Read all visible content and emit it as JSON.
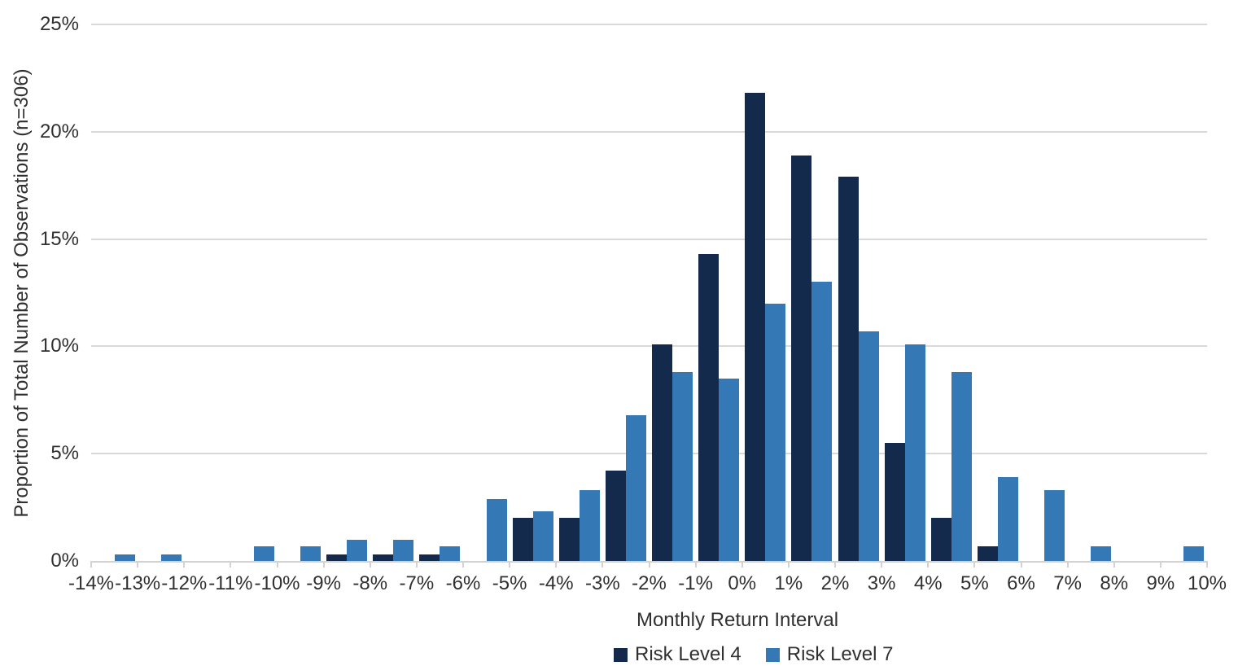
{
  "chart_data": {
    "type": "bar",
    "subtype": "clustered-histogram",
    "title": "",
    "xlabel": "Monthly Return Interval",
    "ylabel": "Proportion of Total Number of Observations (n=306)",
    "x_tick_labels": [
      "-14%",
      "-13%",
      "-12%",
      "-11%",
      "-10%",
      "-9%",
      "-8%",
      "-7%",
      "-6%",
      "-5%",
      "-4%",
      "-3%",
      "-2%",
      "-1%",
      "0%",
      "1%",
      "2%",
      "3%",
      "4%",
      "5%",
      "6%",
      "7%",
      "8%",
      "9%",
      "10%"
    ],
    "bin_intervals_pct": [
      [
        -14,
        -13
      ],
      [
        -13,
        -12
      ],
      [
        -12,
        -11
      ],
      [
        -11,
        -10
      ],
      [
        -10,
        -9
      ],
      [
        -9,
        -8
      ],
      [
        -8,
        -7
      ],
      [
        -7,
        -6
      ],
      [
        -6,
        -5
      ],
      [
        -5,
        -4
      ],
      [
        -4,
        -3
      ],
      [
        -3,
        -2
      ],
      [
        -2,
        -1
      ],
      [
        -1,
        0
      ],
      [
        0,
        1
      ],
      [
        1,
        2
      ],
      [
        2,
        3
      ],
      [
        3,
        4
      ],
      [
        4,
        5
      ],
      [
        5,
        6
      ],
      [
        6,
        7
      ],
      [
        7,
        8
      ],
      [
        8,
        9
      ],
      [
        9,
        10
      ]
    ],
    "series": [
      {
        "name": "Risk Level 4",
        "color": "#132a4c",
        "values": [
          0,
          0,
          0,
          0,
          0,
          0.3,
          0.3,
          0.3,
          0,
          2.0,
          2.0,
          4.2,
          10.1,
          14.3,
          21.8,
          18.9,
          17.9,
          5.5,
          2.0,
          0.7,
          0,
          0,
          0,
          0
        ]
      },
      {
        "name": "Risk Level 7",
        "color": "#3478b5",
        "values": [
          0.3,
          0.3,
          0,
          0.7,
          0.7,
          1.0,
          1.0,
          0.7,
          2.9,
          2.3,
          3.3,
          6.8,
          8.8,
          8.5,
          12.0,
          13.0,
          10.7,
          10.1,
          8.8,
          3.9,
          3.3,
          0.7,
          0,
          0.7
        ]
      }
    ],
    "y_ticks_pct": [
      0,
      5,
      10,
      15,
      20,
      25
    ],
    "y_tick_labels": [
      "0%",
      "5%",
      "10%",
      "15%",
      "20%",
      "25%"
    ],
    "ylim": [
      0,
      25
    ],
    "grid": "horizontal",
    "gridline_color": "#d9d9d9",
    "legend_position": "bottom"
  }
}
